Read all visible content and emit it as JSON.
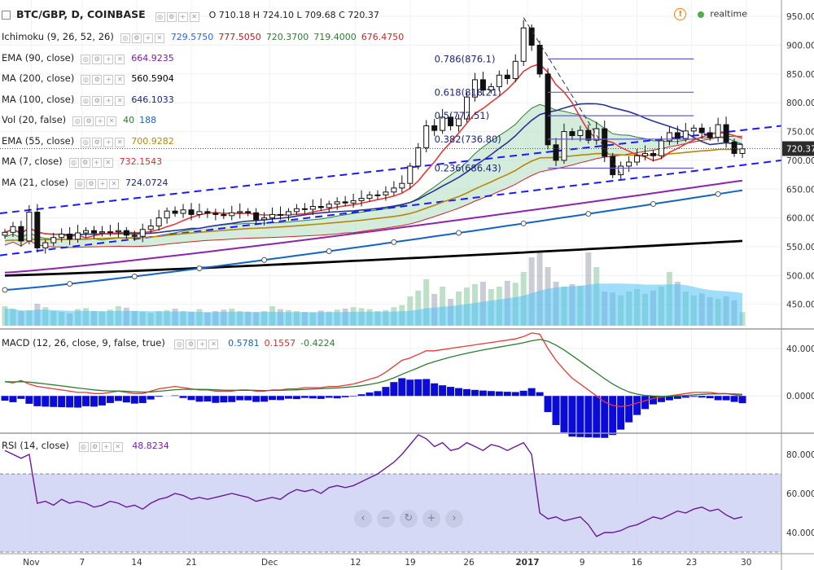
{
  "header": {
    "symbol": "BTC/GBP, D, COINBASE",
    "ohlc": "O 710.18 H 724.10 L 709.68 C 720.37",
    "realtime_label": "realtime",
    "warning_glyph": "!"
  },
  "legend": [
    {
      "label": "Ichimoku (9, 26, 52, 26)",
      "values": [
        {
          "text": "729.5750",
          "color": "#2962ff"
        },
        {
          "text": "777.5050",
          "color": "#b71c1c"
        },
        {
          "text": "720.3700",
          "color": "#2e7d32"
        },
        {
          "text": "719.4000",
          "color": "#2e7d32"
        },
        {
          "text": "676.4750",
          "color": "#c62828"
        }
      ]
    },
    {
      "label": "EMA (90, close)",
      "values": [
        {
          "text": "664.9235",
          "color": "#7b1fa2"
        }
      ]
    },
    {
      "label": "MA (200, close)",
      "values": [
        {
          "text": "560.5904",
          "color": "#000000"
        }
      ]
    },
    {
      "label": "MA (100, close)",
      "values": [
        {
          "text": "646.1033",
          "color": "#1a237e"
        }
      ]
    },
    {
      "label": "Vol (20, false)",
      "values": [
        {
          "text": "40",
          "color": "#2e7d32"
        },
        {
          "text": "188",
          "color": "#1565c0"
        }
      ]
    },
    {
      "label": "EMA (55, close)",
      "values": [
        {
          "text": "700.9282",
          "color": "#b8860b"
        }
      ]
    },
    {
      "label": "MA (7, close)",
      "values": [
        {
          "text": "732.1543",
          "color": "#d32f2f"
        }
      ]
    },
    {
      "label": "MA (21, close)",
      "values": [
        {
          "text": "724.0724",
          "color": "#1a237e"
        }
      ]
    }
  ],
  "macd_legend": {
    "label": "MACD (12, 26, close, 9, false, true)",
    "values": [
      {
        "text": "0.5781",
        "color": "#1565c0"
      },
      {
        "text": "0.1557",
        "color": "#d32f2f"
      },
      {
        "text": "-0.4224",
        "color": "#2e7d32"
      }
    ]
  },
  "rsi_legend": {
    "label": "RSI (14, close)",
    "values": [
      {
        "text": "48.8234",
        "color": "#7b1fa2"
      }
    ]
  },
  "nav_buttons": [
    "‹",
    "−",
    "↻",
    "+",
    "›"
  ],
  "fib_labels": [
    "0.786(876.1)",
    "0.618(818.21)",
    "0.5(777.51)",
    "0.382(736.80)",
    "0.236(686.43)"
  ],
  "last_price": "720.37",
  "chart_data": [
    {
      "type": "candlestick",
      "ylim": [
        410,
        970
      ],
      "y_ticks": [
        "450.0000",
        "500.0000",
        "550.0000",
        "600.0000",
        "650.0000",
        "700.0000",
        "750.0000",
        "800.0000",
        "850.0000",
        "900.0000",
        "950.0000"
      ],
      "x_ticks": [
        "Nov",
        "7",
        "14",
        "21",
        "Dec",
        "12",
        "19",
        "26",
        "2017",
        "9",
        "16",
        "23",
        "30"
      ],
      "close": [
        575,
        585,
        560,
        610,
        548,
        557,
        566,
        572,
        563,
        574,
        578,
        574,
        576,
        576,
        578,
        570,
        568,
        580,
        586,
        600,
        612,
        608,
        614,
        606,
        611,
        608,
        606,
        604,
        609,
        611,
        609,
        597,
        600,
        606,
        605,
        611,
        616,
        615,
        620,
        618,
        624,
        628,
        626,
        630,
        634,
        640,
        640,
        645,
        652,
        660,
        690,
        722,
        760,
        752,
        775,
        760,
        772,
        810,
        840,
        822,
        828,
        848,
        842,
        872,
        930,
        900,
        850,
        727,
        700,
        750,
        743,
        752,
        735,
        755,
        707,
        675,
        690,
        697,
        708,
        712,
        708,
        734,
        748,
        738,
        751,
        756,
        748,
        740,
        762,
        732,
        712,
        720
      ],
      "ma200": [
        500,
        560
      ],
      "ma100": [
        475,
        648
      ],
      "ema90": [
        505,
        665
      ],
      "fibonacci": [
        {
          "level": 0.786,
          "value": 876.1
        },
        {
          "level": 0.618,
          "value": 818.21
        },
        {
          "level": 0.5,
          "value": 777.51
        },
        {
          "level": 0.382,
          "value": 736.8
        },
        {
          "level": 0.236,
          "value": 686.43
        }
      ]
    },
    {
      "type": "area",
      "name": "Vol (20, false)",
      "ylim": [
        0,
        150
      ],
      "volume": [
        40,
        35,
        30,
        32,
        45,
        38,
        30,
        28,
        25,
        34,
        36,
        30,
        29,
        33,
        40,
        37,
        30,
        28,
        26,
        30,
        32,
        35,
        30,
        28,
        34,
        27,
        30,
        33,
        35,
        30,
        29,
        28,
        30,
        40,
        34,
        32,
        30,
        28,
        27,
        31,
        29,
        33,
        35,
        38,
        36,
        34,
        30,
        32,
        38,
        42,
        60,
        72,
        95,
        65,
        80,
        55,
        70,
        78,
        85,
        90,
        75,
        80,
        92,
        88,
        110,
        140,
        150,
        120,
        90,
        80,
        85,
        82,
        150,
        120,
        70,
        68,
        62,
        70,
        75,
        65,
        72,
        80,
        110,
        90,
        70,
        62,
        66,
        58,
        55,
        60,
        52,
        28
      ]
    },
    {
      "type": "line",
      "name": "MACD (12, 26, close, 9, false, true)",
      "ylim": [
        -30,
        55
      ],
      "y_ticks": [
        "0.0000",
        "40.0000"
      ],
      "macd": [
        12,
        11,
        13,
        10,
        8,
        7,
        6,
        5,
        4,
        3,
        3,
        2,
        2,
        3,
        4,
        3,
        2,
        2,
        4,
        6,
        7,
        8,
        7,
        6,
        5,
        5,
        4,
        4,
        4,
        5,
        5,
        4,
        4,
        5,
        5,
        6,
        6,
        7,
        7,
        7,
        8,
        8,
        9,
        10,
        12,
        14,
        16,
        20,
        25,
        30,
        32,
        35,
        38,
        38,
        39,
        40,
        41,
        42,
        43,
        44,
        45,
        46,
        47,
        48,
        50,
        53,
        52,
        40,
        30,
        22,
        15,
        10,
        5,
        0,
        -5,
        -8,
        -9,
        -8,
        -6,
        -4,
        -2,
        -1,
        0,
        1,
        2,
        3,
        3,
        3,
        2,
        2,
        1,
        0
      ]
    },
    {
      "type": "line",
      "name": "RSI (14, close)",
      "ylim": [
        30,
        90
      ],
      "y_ticks": [
        "40.0000",
        "60.0000",
        "80.0000"
      ],
      "band": [
        30,
        70
      ],
      "rsi": [
        82,
        80,
        78,
        80,
        55,
        56,
        54,
        57,
        55,
        56,
        55,
        53,
        54,
        56,
        55,
        53,
        54,
        52,
        55,
        57,
        58,
        60,
        59,
        57,
        58,
        57,
        58,
        59,
        60,
        59,
        58,
        56,
        57,
        58,
        57,
        60,
        62,
        61,
        62,
        60,
        63,
        64,
        63,
        64,
        66,
        68,
        70,
        73,
        76,
        80,
        85,
        90,
        88,
        84,
        86,
        82,
        83,
        86,
        84,
        82,
        85,
        84,
        82,
        84,
        86,
        80,
        50,
        47,
        48,
        46,
        47,
        48,
        44,
        38,
        40,
        40,
        41,
        43,
        44,
        46,
        48,
        47,
        49,
        51,
        50,
        52,
        53,
        51,
        52,
        49,
        47,
        48
      ]
    }
  ]
}
